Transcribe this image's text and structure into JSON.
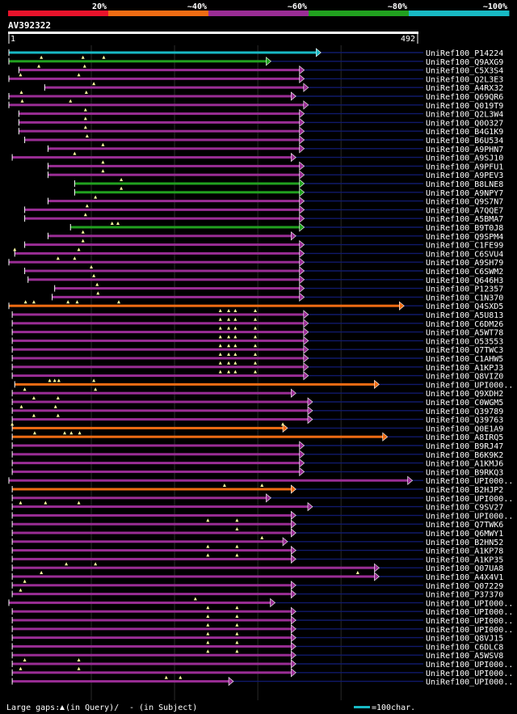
{
  "chart_data": {
    "type": "alignment-overview",
    "query": {
      "name": "AV392322",
      "start": "1",
      "end": "492",
      "length": 492
    },
    "color_scale": [
      {
        "label": "20%",
        "color": "#e8132b"
      },
      {
        "label": "~40%",
        "color": "#ef6c13"
      },
      {
        "label": "~60%",
        "color": "#9a2d95"
      },
      {
        "label": "~80%",
        "color": "#21a11f"
      },
      {
        "label": "~100%",
        "color": "#18b9c4"
      }
    ],
    "hits": [
      {
        "name": "UniRef100_P14224",
        "class": 4,
        "start": 1,
        "end": 370,
        "ext": 500,
        "marks": []
      },
      {
        "name": "UniRef100_Q9AXG9",
        "class": 3,
        "start": 1,
        "end": 310,
        "ext": 500,
        "marks": [
          40,
          90,
          115
        ]
      },
      {
        "name": "UniRef100_C5X3S4",
        "class": 2,
        "start": 13,
        "end": 350,
        "ext": 500,
        "marks": [
          37,
          92
        ]
      },
      {
        "name": "UniRef100_Q2L3E3",
        "class": 2,
        "start": 1,
        "end": 350,
        "ext": 500,
        "marks": [
          15,
          85
        ]
      },
      {
        "name": "UniRef100_A4RX32",
        "class": 2,
        "start": 44,
        "end": 355,
        "ext": 500,
        "marks": [
          103
        ]
      },
      {
        "name": "UniRef100_Q69QR6",
        "class": 2,
        "start": 1,
        "end": 340,
        "ext": 500,
        "marks": [
          16,
          94
        ]
      },
      {
        "name": "UniRef100_Q019T9",
        "class": 2,
        "start": 1,
        "end": 355,
        "ext": 500,
        "marks": [
          17,
          75
        ]
      },
      {
        "name": "UniRef100_Q2L3W4",
        "class": 2,
        "start": 13,
        "end": 350,
        "ext": 500,
        "marks": [
          93
        ]
      },
      {
        "name": "UniRef100_Q0O327",
        "class": 2,
        "start": 13,
        "end": 350,
        "ext": 500,
        "marks": [
          93
        ]
      },
      {
        "name": "UniRef100_B4G1K9",
        "class": 2,
        "start": 13,
        "end": 350,
        "ext": 500,
        "marks": [
          93
        ]
      },
      {
        "name": "UniRef100_B6U534",
        "class": 2,
        "start": 20,
        "end": 350,
        "ext": 500,
        "marks": [
          95
        ]
      },
      {
        "name": "UniRef100_A9PHN7",
        "class": 2,
        "start": 48,
        "end": 350,
        "ext": 500,
        "marks": [
          114
        ]
      },
      {
        "name": "UniRef100_A9SJ10",
        "class": 2,
        "start": 5,
        "end": 340,
        "ext": 500,
        "marks": [
          80
        ]
      },
      {
        "name": "UniRef100_A9PFU1",
        "class": 2,
        "start": 48,
        "end": 350,
        "ext": 500,
        "marks": [
          114
        ]
      },
      {
        "name": "UniRef100_A9PEV3",
        "class": 2,
        "start": 48,
        "end": 350,
        "ext": 500,
        "marks": [
          114
        ]
      },
      {
        "name": "UniRef100_B8LNE8",
        "class": 3,
        "start": 80,
        "end": 350,
        "ext": 500,
        "marks": [
          136
        ]
      },
      {
        "name": "UniRef100_A9NPY7",
        "class": 3,
        "start": 80,
        "end": 350,
        "ext": 500,
        "marks": [
          136
        ]
      },
      {
        "name": "UniRef100_Q9S7N7",
        "class": 2,
        "start": 48,
        "end": 350,
        "ext": 500,
        "marks": [
          105
        ]
      },
      {
        "name": "UniRef100_A7QQE7",
        "class": 2,
        "start": 20,
        "end": 350,
        "ext": 500,
        "marks": [
          95
        ]
      },
      {
        "name": "UniRef100_A5BMA7",
        "class": 2,
        "start": 20,
        "end": 350,
        "ext": 500,
        "marks": [
          93
        ]
      },
      {
        "name": "UniRef100_B9T0J8",
        "class": 3,
        "start": 75,
        "end": 350,
        "ext": 500,
        "marks": [
          125,
          132
        ]
      },
      {
        "name": "UniRef100_Q9SPM4",
        "class": 2,
        "start": 48,
        "end": 340,
        "ext": 500,
        "marks": [
          90
        ]
      },
      {
        "name": "UniRef100_C1FE99",
        "class": 2,
        "start": 20,
        "end": 350,
        "ext": 500,
        "marks": [
          90
        ]
      },
      {
        "name": "UniRef100_C6SVU4",
        "class": 2,
        "start": 8,
        "end": 350,
        "ext": 500,
        "marks": [
          8,
          85
        ]
      },
      {
        "name": "UniRef100_A9SH79",
        "class": 2,
        "start": 1,
        "end": 350,
        "ext": 500,
        "marks": [
          60,
          80
        ]
      },
      {
        "name": "UniRef100_C6SWM2",
        "class": 2,
        "start": 20,
        "end": 350,
        "ext": 500,
        "marks": [
          100
        ]
      },
      {
        "name": "UniRef100_Q646H3",
        "class": 2,
        "start": 24,
        "end": 350,
        "ext": 500,
        "marks": [
          103
        ]
      },
      {
        "name": "UniRef100_P12357",
        "class": 2,
        "start": 56,
        "end": 350,
        "ext": 500,
        "marks": [
          107
        ]
      },
      {
        "name": "UniRef100_C1N370",
        "class": 2,
        "start": 53,
        "end": 350,
        "ext": 500,
        "marks": [
          108
        ]
      },
      {
        "name": "UniRef100_Q4SXD5",
        "class": 1,
        "start": 1,
        "end": 470,
        "ext": 500,
        "marks": [
          21,
          31,
          72,
          83,
          133
        ]
      },
      {
        "name": "UniRef100_A5U813",
        "class": 2,
        "start": 5,
        "end": 355,
        "ext": 500,
        "marks": [
          255,
          265,
          273,
          297
        ]
      },
      {
        "name": "UniRef100_C6DM26",
        "class": 2,
        "start": 5,
        "end": 355,
        "ext": 500,
        "marks": [
          255,
          265,
          273,
          297
        ]
      },
      {
        "name": "UniRef100_A5WT78",
        "class": 2,
        "start": 5,
        "end": 355,
        "ext": 500,
        "marks": [
          255,
          265,
          273,
          297
        ]
      },
      {
        "name": "UniRef100_O53553",
        "class": 2,
        "start": 5,
        "end": 355,
        "ext": 500,
        "marks": [
          255,
          265,
          273,
          297
        ]
      },
      {
        "name": "UniRef100_Q7TWC3",
        "class": 2,
        "start": 5,
        "end": 355,
        "ext": 500,
        "marks": [
          255,
          265,
          273,
          297
        ]
      },
      {
        "name": "UniRef100_C1AHW5",
        "class": 2,
        "start": 5,
        "end": 355,
        "ext": 500,
        "marks": [
          255,
          265,
          273,
          297
        ]
      },
      {
        "name": "UniRef100_A1KPJ3",
        "class": 2,
        "start": 5,
        "end": 355,
        "ext": 500,
        "marks": [
          255,
          265,
          273,
          297
        ]
      },
      {
        "name": "UniRef100_Q8VIZ0",
        "class": 2,
        "start": 5,
        "end": 355,
        "ext": 500,
        "marks": [
          255,
          265,
          273,
          297
        ]
      },
      {
        "name": "UniRef100_UPI000..",
        "class": 1,
        "start": 8,
        "end": 440,
        "ext": 500,
        "marks": [
          50,
          56,
          61,
          103
        ]
      },
      {
        "name": "UniRef100_Q9XDH2",
        "class": 2,
        "start": 5,
        "end": 340,
        "ext": 500,
        "marks": [
          20,
          105
        ]
      },
      {
        "name": "UniRef100_C0WGM5",
        "class": 2,
        "start": 5,
        "end": 360,
        "ext": 500,
        "marks": [
          31,
          60
        ]
      },
      {
        "name": "UniRef100_Q39789",
        "class": 2,
        "start": 5,
        "end": 360,
        "ext": 500,
        "marks": [
          16,
          57
        ]
      },
      {
        "name": "UniRef100_Q39763",
        "class": 2,
        "start": 5,
        "end": 360,
        "ext": 500,
        "marks": [
          31,
          60
        ]
      },
      {
        "name": "UniRef100_Q0E1A9",
        "class": 1,
        "start": 5,
        "end": 330,
        "ext": 500,
        "marks": [
          5,
          330
        ]
      },
      {
        "name": "UniRef100_A8IRQ5",
        "class": 1,
        "start": 5,
        "end": 450,
        "ext": 500,
        "marks": [
          32,
          68,
          76,
          86
        ]
      },
      {
        "name": "UniRef100_B9RJ47",
        "class": 2,
        "start": 5,
        "end": 350,
        "ext": 500,
        "marks": []
      },
      {
        "name": "UniRef100_B6K9K2",
        "class": 2,
        "start": 5,
        "end": 350,
        "ext": 500,
        "marks": []
      },
      {
        "name": "UniRef100_A1KMJ6",
        "class": 2,
        "start": 5,
        "end": 350,
        "ext": 500,
        "marks": []
      },
      {
        "name": "UniRef100_B9RKQ3",
        "class": 2,
        "start": 5,
        "end": 350,
        "ext": 500,
        "marks": []
      },
      {
        "name": "UniRef100_UPI000..",
        "class": 2,
        "start": 1,
        "end": 480,
        "ext": 500,
        "marks": []
      },
      {
        "name": "UniRef100_B2HJP2",
        "class": 1,
        "start": 5,
        "end": 340,
        "ext": 500,
        "marks": [
          260,
          305
        ]
      },
      {
        "name": "UniRef100_UPI000..",
        "class": 2,
        "start": 5,
        "end": 310,
        "ext": 500,
        "marks": []
      },
      {
        "name": "UniRef100_C9SV27",
        "class": 2,
        "start": 5,
        "end": 360,
        "ext": 500,
        "marks": [
          15,
          45,
          85
        ]
      },
      {
        "name": "UniRef100_UPI000..",
        "class": 2,
        "start": 5,
        "end": 340,
        "ext": 500,
        "marks": []
      },
      {
        "name": "UniRef100_Q7TWK6",
        "class": 2,
        "start": 5,
        "end": 340,
        "ext": 500,
        "marks": [
          240,
          275
        ]
      },
      {
        "name": "UniRef100_Q6MWY1",
        "class": 2,
        "start": 5,
        "end": 340,
        "ext": 500,
        "marks": [
          275
        ]
      },
      {
        "name": "UniRef100_B2HN52",
        "class": 2,
        "start": 5,
        "end": 330,
        "ext": 500,
        "marks": [
          305
        ]
      },
      {
        "name": "UniRef100_A1KP78",
        "class": 2,
        "start": 5,
        "end": 340,
        "ext": 500,
        "marks": [
          240,
          275
        ]
      },
      {
        "name": "UniRef100_A1KP35",
        "class": 2,
        "start": 5,
        "end": 340,
        "ext": 500,
        "marks": [
          240,
          275
        ]
      },
      {
        "name": "UniRef100_Q07UA8",
        "class": 2,
        "start": 5,
        "end": 440,
        "ext": 500,
        "marks": [
          70,
          105
        ]
      },
      {
        "name": "UniRef100_A4X4V1",
        "class": 2,
        "start": 5,
        "end": 440,
        "ext": 500,
        "marks": [
          40,
          420
        ]
      },
      {
        "name": "UniRef100_Q07229",
        "class": 2,
        "start": 5,
        "end": 340,
        "ext": 500,
        "marks": [
          20
        ]
      },
      {
        "name": "UniRef100_P37370",
        "class": 2,
        "start": 5,
        "end": 340,
        "ext": 500,
        "marks": [
          15
        ]
      },
      {
        "name": "UniRef100_UPI000..",
        "class": 2,
        "start": 1,
        "end": 315,
        "ext": 500,
        "marks": [
          225
        ]
      },
      {
        "name": "UniRef100_UPI000..",
        "class": 2,
        "start": 5,
        "end": 340,
        "ext": 500,
        "marks": [
          240,
          275
        ]
      },
      {
        "name": "UniRef100_UPI000..",
        "class": 2,
        "start": 5,
        "end": 340,
        "ext": 500,
        "marks": [
          240,
          275
        ]
      },
      {
        "name": "UniRef100_UPI000..",
        "class": 2,
        "start": 5,
        "end": 340,
        "ext": 500,
        "marks": [
          240,
          275
        ]
      },
      {
        "name": "UniRef100_Q8VJ15",
        "class": 2,
        "start": 5,
        "end": 340,
        "ext": 500,
        "marks": [
          240,
          275
        ]
      },
      {
        "name": "UniRef100_C6DLC8",
        "class": 2,
        "start": 5,
        "end": 340,
        "ext": 500,
        "marks": [
          240,
          275
        ]
      },
      {
        "name": "UniRef100_A5WSV8",
        "class": 2,
        "start": 5,
        "end": 340,
        "ext": 500,
        "marks": [
          240,
          275
        ]
      },
      {
        "name": "UniRef100_UPI000..",
        "class": 2,
        "start": 5,
        "end": 340,
        "ext": 500,
        "marks": [
          20,
          85
        ]
      },
      {
        "name": "UniRef100_UPI000..",
        "class": 2,
        "start": 5,
        "end": 340,
        "ext": 500,
        "marks": [
          15,
          85
        ]
      },
      {
        "name": "UniRef100_UPI000..",
        "class": 2,
        "start": 5,
        "end": 265,
        "ext": 500,
        "marks": [
          190,
          207
        ]
      }
    ],
    "legend": {
      "gaps_prefix": "Large gaps:",
      "gaps_query": "(in Query)/",
      "gaps_subject": "- (in Subject)",
      "scale_label": "=100char."
    }
  }
}
